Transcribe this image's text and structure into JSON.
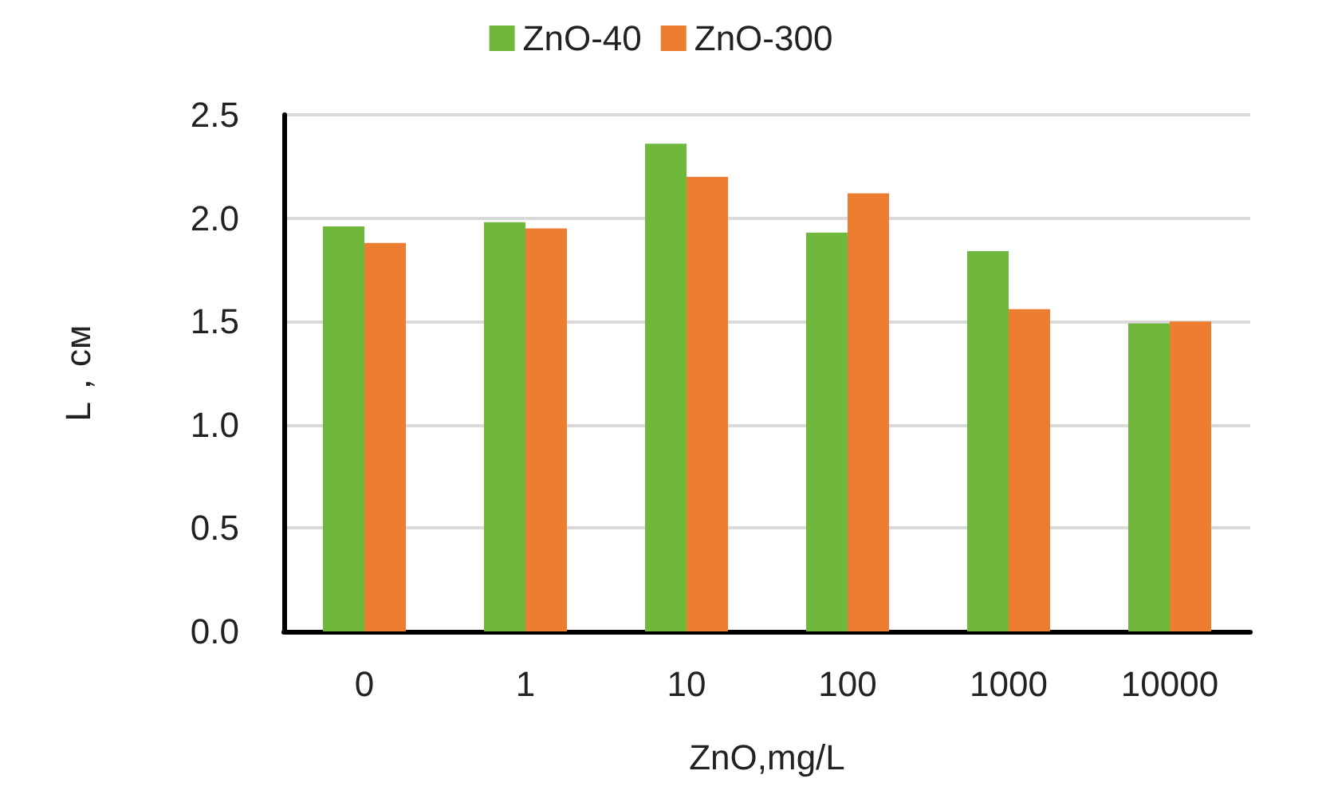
{
  "chart_data": {
    "type": "bar",
    "xlabel": "ZnO,mg/L",
    "ylabel": "L，см",
    "categories": [
      "0",
      "1",
      "10",
      "100",
      "1000",
      "10000"
    ],
    "series": [
      {
        "name": "ZnO-40",
        "color": "#70b83c",
        "values": [
          1.96,
          1.98,
          2.36,
          1.93,
          1.84,
          1.49
        ]
      },
      {
        "name": "ZnO-300",
        "color": "#ed7d31",
        "values": [
          1.88,
          1.95,
          2.2,
          2.12,
          1.56,
          1.5
        ]
      }
    ],
    "ylim": [
      0,
      2.5
    ],
    "yticks": [
      {
        "value": 0,
        "label": "0.0"
      },
      0.5,
      {
        "value": 1,
        "label": "1.0"
      },
      1.5,
      {
        "value": 2,
        "label": "2.0"
      },
      2.5
    ],
    "grid": "y",
    "legend": "top"
  }
}
